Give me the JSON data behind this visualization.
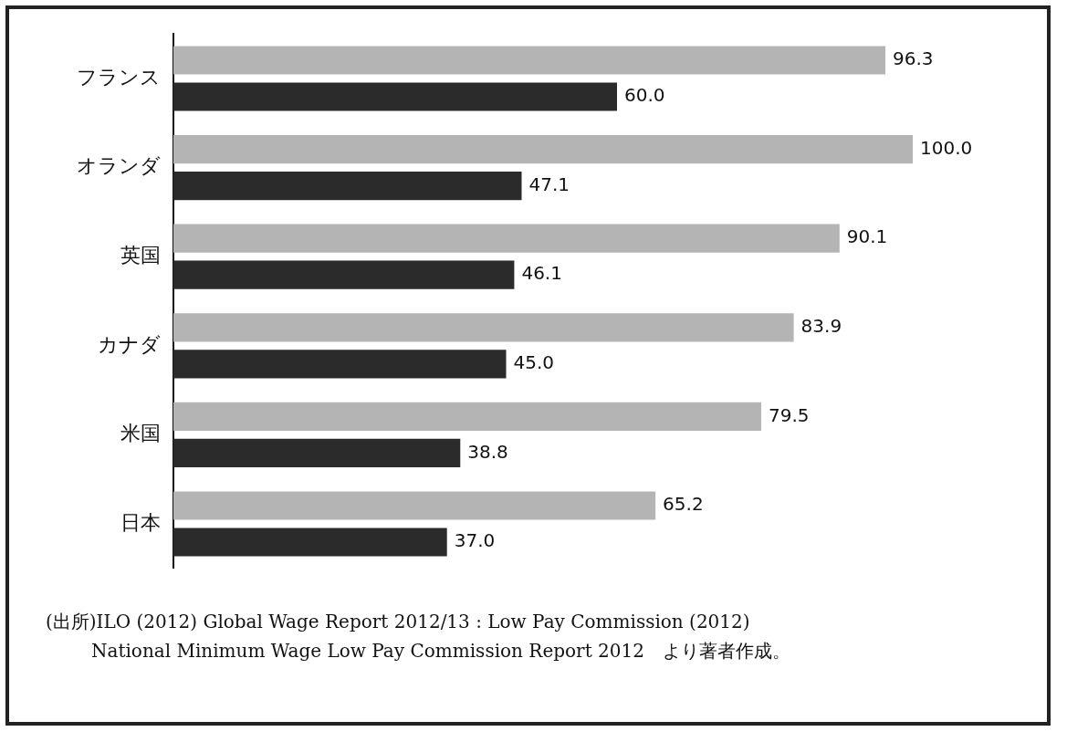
{
  "chart_data": {
    "type": "bar",
    "orientation": "horizontal",
    "categories": [
      "フランス",
      "オランダ",
      "英国",
      "カナダ",
      "米国",
      "日本"
    ],
    "series": [
      {
        "color": "#b4b4b4",
        "values": [
          96.3,
          100.0,
          90.1,
          83.9,
          79.5,
          65.2
        ],
        "value_labels": [
          "96.3",
          "100.0",
          "90.1",
          "83.9",
          "79.5",
          "65.2"
        ]
      },
      {
        "color": "#2b2b2b",
        "values": [
          60.0,
          47.1,
          46.1,
          45.0,
          38.8,
          37.0
        ],
        "value_labels": [
          "60.0",
          "47.1",
          "46.1",
          "45.0",
          "38.8",
          "37.0"
        ]
      }
    ],
    "grid": false,
    "legend": false,
    "annotations": [
      "(出所)ILO (2012) Global Wage Report 2012/13 : Low Pay Commission (2012)",
      "National Minimum Wage Low Pay Commission Report 2012　より著者作成。"
    ]
  }
}
